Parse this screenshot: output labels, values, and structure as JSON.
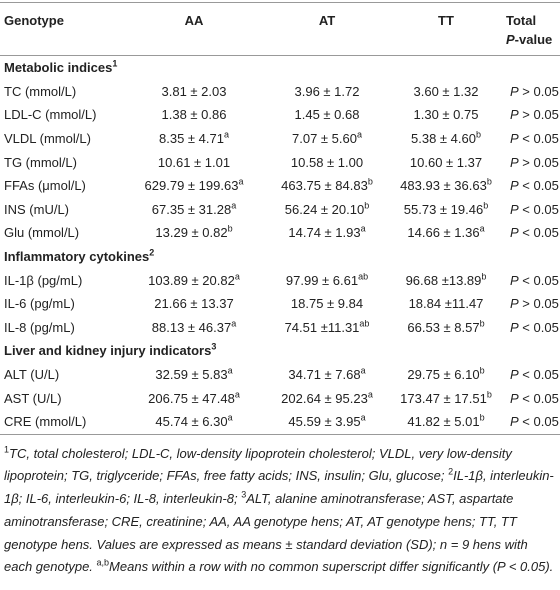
{
  "table": {
    "header": {
      "label": "Genotype",
      "groups": [
        "AA",
        "AT",
        "TT"
      ],
      "total": {
        "line1": "Total",
        "symbol": "P",
        "rest": "-value"
      }
    },
    "sections": [
      {
        "title": "Metabolic indices",
        "sup": "1",
        "rows": [
          {
            "label": "TC (mmol/L)",
            "cells": [
              {
                "value": "3.81 ± 2.03"
              },
              {
                "value": "3.96 ± 1.72"
              },
              {
                "value": "3.60 ± 1.32"
              }
            ],
            "p": {
              "symbol": "P",
              "relation": "> 0.05"
            }
          },
          {
            "label": "LDL-C (mmol/L)",
            "cells": [
              {
                "value": "1.38 ± 0.86"
              },
              {
                "value": "1.45 ± 0.68"
              },
              {
                "value": "1.30 ± 0.75"
              }
            ],
            "p": {
              "symbol": "P",
              "relation": "> 0.05"
            }
          },
          {
            "label": "VLDL (mmol/L)",
            "cells": [
              {
                "value": "8.35 ± 4.71",
                "sup": "a"
              },
              {
                "value": "7.07 ± 5.60",
                "sup": "a"
              },
              {
                "value": "5.38 ± 4.60",
                "sup": "b"
              }
            ],
            "p": {
              "symbol": "P",
              "relation": "< 0.05"
            }
          },
          {
            "label": "TG (mmol/L)",
            "cells": [
              {
                "value": "10.61 ± 1.01"
              },
              {
                "value": "10.58 ± 1.00"
              },
              {
                "value": "10.60 ± 1.37"
              }
            ],
            "p": {
              "symbol": "P",
              "relation": "> 0.05"
            }
          },
          {
            "label": "FFAs (μmol/L)",
            "cells": [
              {
                "value": "629.79 ± 199.63",
                "sup": "a"
              },
              {
                "value": "463.75 ± 84.83",
                "sup": "b"
              },
              {
                "value": "483.93 ± 36.63",
                "sup": "b"
              }
            ],
            "p": {
              "symbol": "P",
              "relation": "< 0.05"
            }
          },
          {
            "label": "INS (mU/L)",
            "cells": [
              {
                "value": "67.35 ± 31.28",
                "sup": "a"
              },
              {
                "value": "56.24 ± 20.10",
                "sup": "b"
              },
              {
                "value": "55.73 ± 19.46",
                "sup": "b"
              }
            ],
            "p": {
              "symbol": "P",
              "relation": "< 0.05"
            }
          },
          {
            "label": "Glu (mmol/L)",
            "cells": [
              {
                "value": "13.29 ± 0.82",
                "sup": "b"
              },
              {
                "value": "14.74 ± 1.93",
                "sup": "a"
              },
              {
                "value": "14.66 ± 1.36",
                "sup": "a"
              }
            ],
            "p": {
              "symbol": "P",
              "relation": "< 0.05"
            }
          }
        ]
      },
      {
        "title": "Inflammatory cytokines",
        "sup": "2",
        "rows": [
          {
            "label": "IL-1β (pg/mL)",
            "cells": [
              {
                "value": "103.89 ± 20.82",
                "sup": "a"
              },
              {
                "value": "97.99 ± 6.61",
                "sup": "ab"
              },
              {
                "value": "96.68 ±13.89",
                "sup": "b"
              }
            ],
            "p": {
              "symbol": "P",
              "relation": "< 0.05"
            }
          },
          {
            "label": "IL-6 (pg/mL)",
            "cells": [
              {
                "value": "21.66 ± 13.37"
              },
              {
                "value": "18.75 ± 9.84"
              },
              {
                "value": "18.84 ±11.47"
              }
            ],
            "p": {
              "symbol": "P",
              "relation": "> 0.05"
            }
          },
          {
            "label": "IL-8 (pg/mL)",
            "cells": [
              {
                "value": "88.13 ± 46.37",
                "sup": "a"
              },
              {
                "value": "74.51 ±11.31",
                "sup": "ab"
              },
              {
                "value": "66.53 ± 8.57",
                "sup": "b"
              }
            ],
            "p": {
              "symbol": "P",
              "relation": "< 0.05"
            }
          }
        ]
      },
      {
        "title": "Liver and kidney injury indicators",
        "sup": "3",
        "rows": [
          {
            "label": "ALT (U/L)",
            "cells": [
              {
                "value": "32.59 ± 5.83",
                "sup": "a"
              },
              {
                "value": "34.71 ± 7.68",
                "sup": "a"
              },
              {
                "value": "29.75 ± 6.10",
                "sup": "b"
              }
            ],
            "p": {
              "symbol": "P",
              "relation": "< 0.05"
            }
          },
          {
            "label": "AST (U/L)",
            "cells": [
              {
                "value": "206.75 ± 47.48",
                "sup": "a"
              },
              {
                "value": "202.64 ± 95.23",
                "sup": "a"
              },
              {
                "value": "173.47 ± 17.51",
                "sup": "b"
              }
            ],
            "p": {
              "symbol": "P",
              "relation": "< 0.05"
            }
          },
          {
            "label": "CRE (mmol/L)",
            "cells": [
              {
                "value": "45.74 ± 6.30",
                "sup": "a"
              },
              {
                "value": "45.59 ± 3.95",
                "sup": "a"
              },
              {
                "value": "41.82 ± 5.01",
                "sup": "b"
              }
            ],
            "p": {
              "symbol": "P",
              "relation": "< 0.05"
            }
          }
        ]
      }
    ]
  },
  "footnote": [
    {
      "sup": "1"
    },
    {
      "text": "TC, total cholesterol; LDL-C, low-density lipoprotein cholesterol; VLDL, very low-density lipoprotein; TG, triglyceride; FFAs, free fatty acids; INS, insulin; Glu, glucose; "
    },
    {
      "sup": "2"
    },
    {
      "text": "IL-1β, interleukin-1β; IL-6, interleukin-6; IL-8, interleukin-8; "
    },
    {
      "sup": "3"
    },
    {
      "text": "ALT, alanine aminotransferase; AST, aspartate aminotransferase; CRE, creatinine; AA, AA genotype hens; AT, AT genotype hens; TT, TT genotype hens. Values are expressed as means ± standard deviation (SD); n = 9 hens with each genotype. "
    },
    {
      "sup": "a,b"
    },
    {
      "text": "Means within a row with no common superscript differ significantly (P < 0.05)."
    }
  ]
}
